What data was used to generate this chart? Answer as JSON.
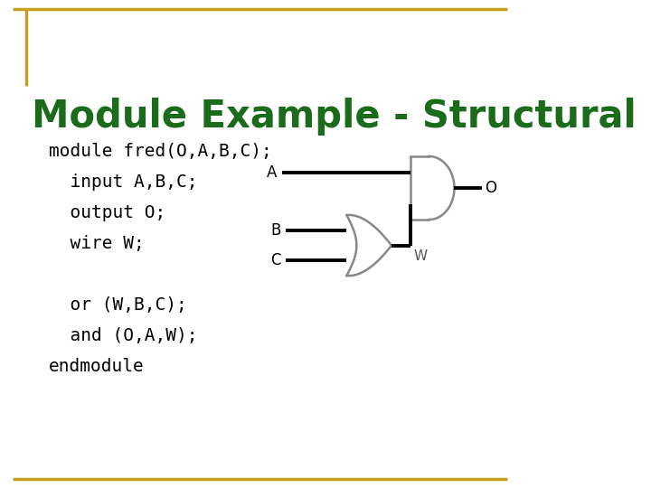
{
  "title": "Module Example - Structural",
  "title_color": "#1a6b1a",
  "title_fontsize": 30,
  "bg_color": "#ffffff",
  "border_color": "#c8a020",
  "code_lines": [
    "module fred(O,A,B,C);",
    "  input A,B,C;",
    "  output O;",
    "  wire W;",
    "",
    "  or (W,B,C);",
    "  and (O,A,W);",
    "endmodule"
  ],
  "code_color": "#000000",
  "code_fontsize": 14,
  "label_color": "#000000",
  "wire_color": "#000000",
  "gate_stroke": "#888888",
  "gate_fill": "#ffffff",
  "label_fontsize": 12
}
